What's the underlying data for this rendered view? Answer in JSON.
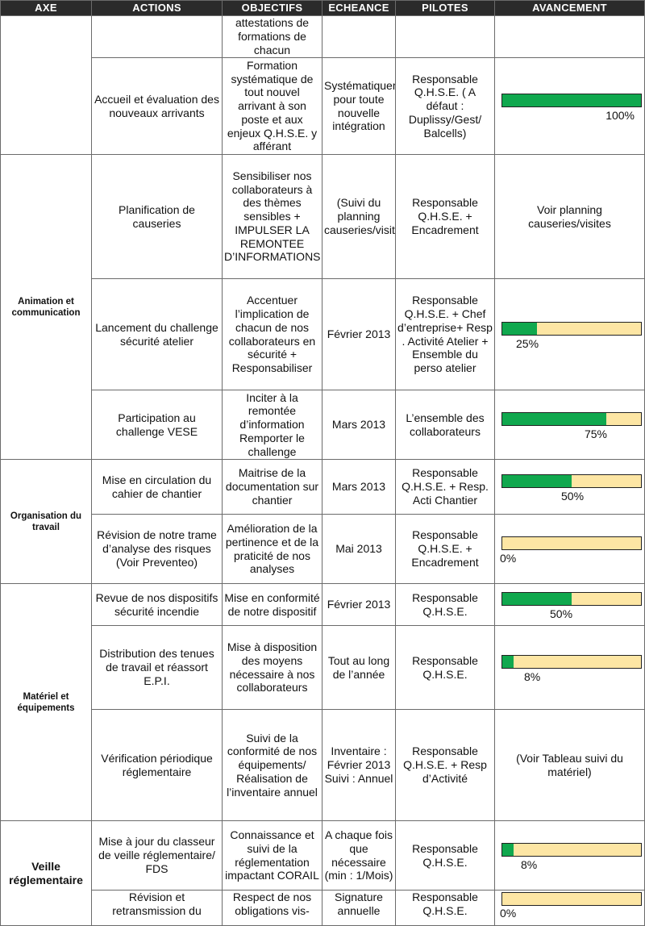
{
  "header": {
    "axe": "AXE",
    "actions": "ACTIONS",
    "objectifs": "OBJECTIFS",
    "echeance": "ECHEANCE",
    "pilotes": "PILOTES",
    "avancement": "AVANCEMENT"
  },
  "colors": {
    "progress_fill": "#10a84e",
    "progress_bg": "#fde6a4",
    "header_bg": "#2b2b2b"
  },
  "axes": {
    "a0": "",
    "a1": "Animation et communication",
    "a2": "Organisation du travail",
    "a3": "Matériel et équipements",
    "a4": "Veille réglementaire"
  },
  "rows": [
    {
      "action": "",
      "objectif": "attestations de formations de chacun",
      "echeance": "",
      "pilotes": "",
      "progress": null
    },
    {
      "action": "Accueil et évaluation des nouveaux arrivants",
      "objectif": "Formation systématique de tout nouvel arrivant à son poste et aux enjeux Q.H.S.E. y afférant",
      "echeance": "Systématiquement pour toute nouvelle intégration",
      "pilotes": "Responsable Q.H.S.E. ( A défaut : Duplissy/Gest/ Balcells)",
      "progress": 1.0,
      "progress_label": "100%"
    },
    {
      "action": "Planification de causeries",
      "objectif": "Sensibiliser nos collaborateurs à des thèmes sensibles + IMPULSER LA REMONTEE D’INFORMATIONS",
      "echeance": "(Suivi du planning causeries/visites)",
      "pilotes": "Responsable Q.H.S.E. + Encadrement",
      "avancement_text": "Voir planning causeries/visites"
    },
    {
      "action": "Lancement du challenge sécurité atelier",
      "objectif": "Accentuer l’implication de chacun de nos collaborateurs en sécurité + Responsabiliser",
      "echeance": "Février 2013",
      "pilotes": "Responsable Q.H.S.E. + Chef d’entreprise+ Resp . Activité Atelier + Ensemble du perso atelier",
      "progress": 0.25,
      "progress_label": "25%"
    },
    {
      "action": "Participation au challenge VESE",
      "objectif": "Inciter à la remontée d’information Remporter le challenge",
      "echeance": "Mars 2013",
      "pilotes": "L’ensemble des collaborateurs",
      "progress": 0.75,
      "progress_label": "75%"
    },
    {
      "action": "Mise en circulation du cahier de chantier",
      "objectif": "Maitrise de la documentation sur chantier",
      "echeance": "Mars 2013",
      "pilotes": "Responsable Q.H.S.E. + Resp. Acti Chantier",
      "progress": 0.5,
      "progress_label": "50%"
    },
    {
      "action": "Révision de notre trame d’analyse des risques (Voir Preventeo)",
      "objectif": "Amélioration de la pertinence et de la praticité de nos analyses",
      "echeance": "Mai 2013",
      "pilotes": "Responsable Q.H.S.E. + Encadrement",
      "progress": 0.0,
      "progress_label": "0%"
    },
    {
      "action": "Revue de nos dispositifs sécurité incendie",
      "objectif": "Mise en conformité de notre dispositif",
      "echeance": "Février 2013",
      "pilotes": "Responsable Q.H.S.E.",
      "progress": 0.5,
      "progress_label": "50%"
    },
    {
      "action": "Distribution des tenues de travail et réassort E.P.I.",
      "objectif": "Mise à disposition des moyens nécessaire à nos collaborateurs",
      "echeance": "Tout au long de l’année",
      "pilotes": "Responsable Q.H.S.E.",
      "progress": 0.08,
      "progress_label": "8%"
    },
    {
      "action": "Vérification périodique réglementaire",
      "objectif": "Suivi de la conformité de nos équipements/ Réalisation de l’inventaire annuel",
      "echeance": "Inventaire : Février 2013 Suivi : Annuel",
      "pilotes": "Responsable Q.H.S.E. + Resp d’Activité",
      "avancement_text": "(Voir Tableau suivi du matériel)"
    },
    {
      "action": "Mise à jour du classeur de veille réglementaire/ FDS",
      "objectif": "Connaissance et suivi de la réglementation impactant CORAIL",
      "echeance": "A chaque fois que nécessaire (min : 1/Mois)",
      "pilotes": "Responsable Q.H.S.E.",
      "progress": 0.08,
      "progress_label": "8%"
    },
    {
      "action": "Révision et retransmission du",
      "objectif": "Respect de nos obligations vis-",
      "echeance": "Signature annuelle",
      "pilotes": "Responsable Q.H.S.E.",
      "progress": 0.0,
      "progress_label": "0%"
    }
  ]
}
